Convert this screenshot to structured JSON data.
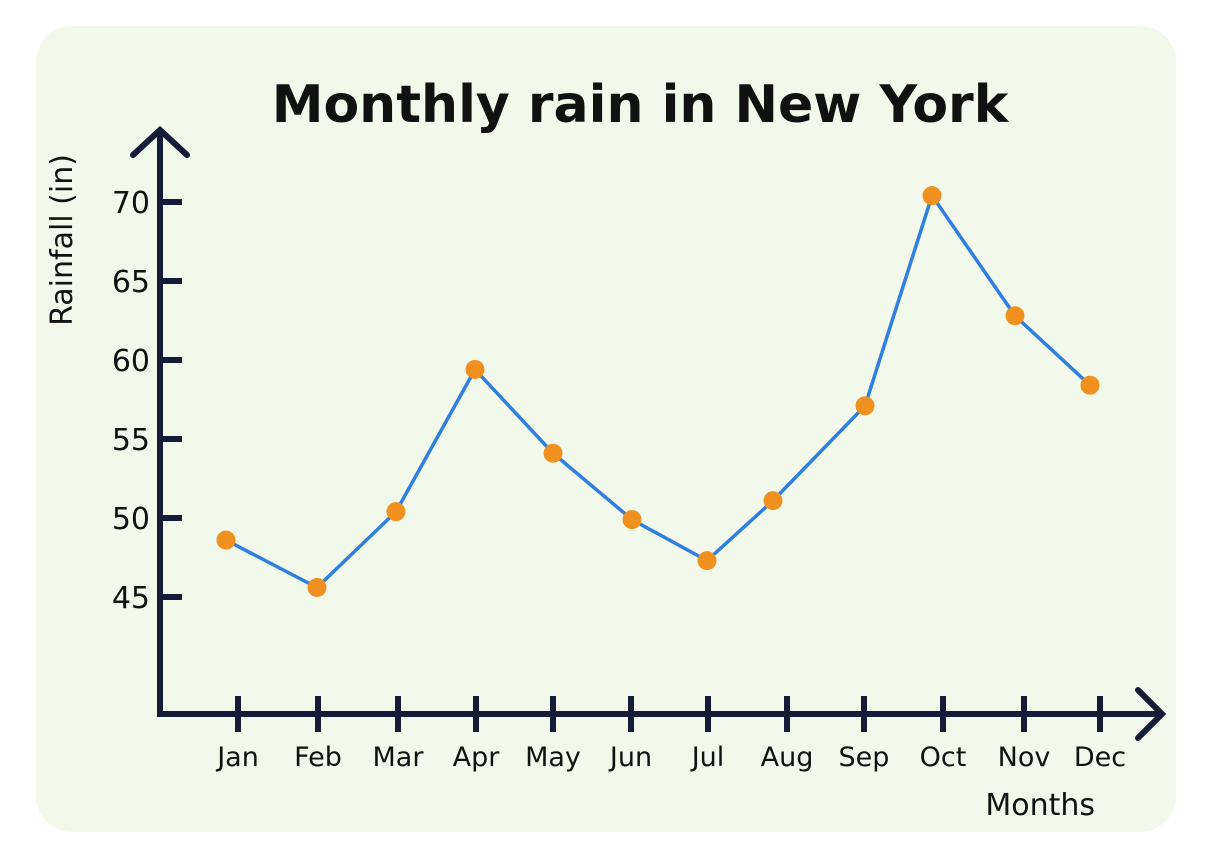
{
  "chart_data": {
    "type": "line",
    "title": "Monthly rain in New York",
    "xlabel": "Months",
    "ylabel": "Rainfall (in)",
    "categories": [
      "Jan",
      "Feb",
      "Mar",
      "Apr",
      "May",
      "Jun",
      "Jul",
      "Aug",
      "Sep",
      "Oct",
      "Nov",
      "Dec"
    ],
    "yticks": [
      45,
      50,
      55,
      60,
      65,
      70
    ],
    "series": [
      {
        "values": [
          48.6,
          45.6,
          50.4,
          59.4,
          54.1,
          49.9,
          47.3,
          51.1,
          57.1,
          70.4,
          62.8,
          58.4
        ]
      }
    ],
    "grid": false,
    "colors": {
      "line": "#2f7fe0",
      "marker": "#f0901e",
      "axis": "#141c38",
      "background": "#f3f9ea"
    }
  }
}
